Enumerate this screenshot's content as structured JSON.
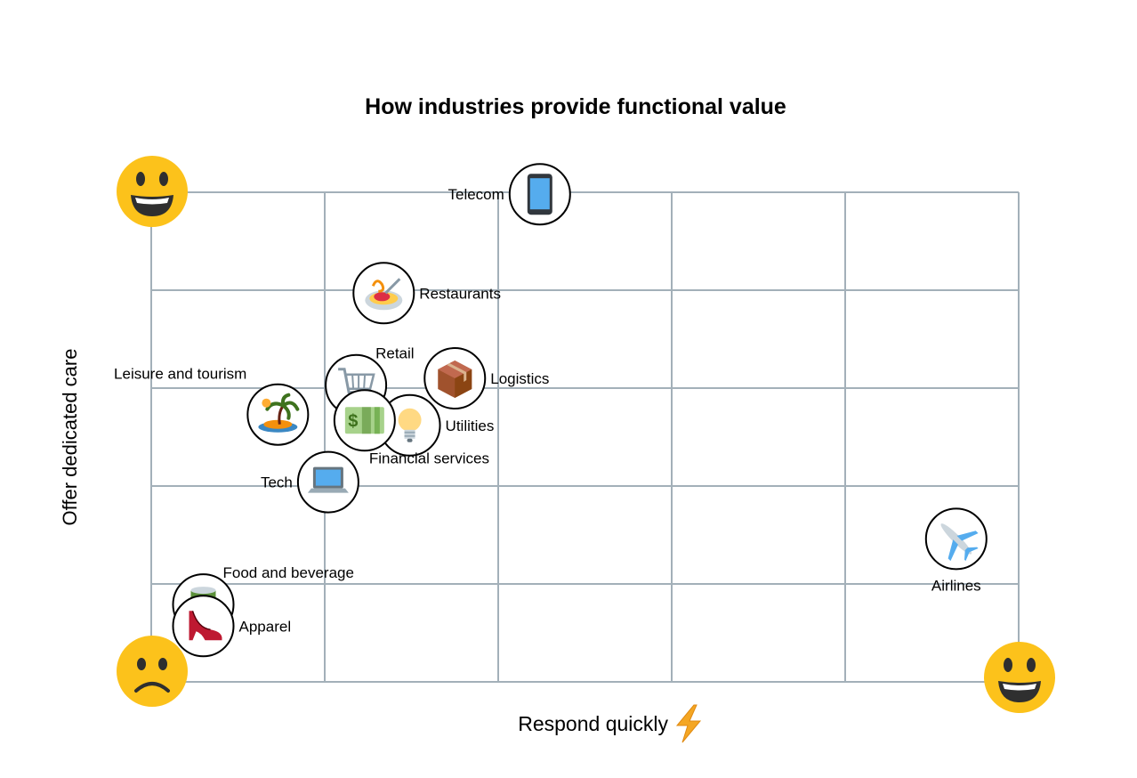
{
  "chart_data": {
    "type": "scatter",
    "title": "How industries provide functional value",
    "xlabel": "Respond quickly",
    "xlabel_icon": "lightning-bolt-icon",
    "ylabel": "Offer dedicated care",
    "xlim": [
      0,
      5
    ],
    "ylim": [
      0,
      5
    ],
    "grid": true,
    "grid_color": "#a3b0b9",
    "corner_icons": [
      {
        "name": "top-left-happy-face-icon",
        "mood": "happy",
        "corner": "top-left"
      },
      {
        "name": "bottom-left-sad-face-icon",
        "mood": "sad",
        "corner": "bottom-left"
      },
      {
        "name": "bottom-right-happy-face-icon",
        "mood": "happy",
        "corner": "bottom-right"
      }
    ],
    "points": [
      {
        "label": "Telecom",
        "x": 2.24,
        "y": 4.98,
        "icon": "mobile-phone-icon",
        "label_pos": "left"
      },
      {
        "label": "Restaurants",
        "x": 1.34,
        "y": 3.97,
        "icon": "spaghetti-icon",
        "label_pos": "right"
      },
      {
        "label": "Retail",
        "x": 1.18,
        "y": 3.03,
        "icon": "shopping-cart-icon",
        "label_pos": "top-right"
      },
      {
        "label": "Logistics",
        "x": 1.75,
        "y": 3.1,
        "icon": "package-icon",
        "label_pos": "right"
      },
      {
        "label": "Leisure and tourism",
        "x": 0.73,
        "y": 2.73,
        "icon": "desert-island-icon",
        "label_pos": "top-left"
      },
      {
        "label": "Utilities",
        "x": 1.49,
        "y": 2.62,
        "icon": "light-bulb-icon",
        "label_pos": "right"
      },
      {
        "label": "Financial services",
        "x": 1.23,
        "y": 2.67,
        "icon": "dollar-banknote-icon",
        "label_pos": "bottom-right"
      },
      {
        "label": "Tech",
        "x": 1.02,
        "y": 2.04,
        "icon": "laptop-icon",
        "label_pos": "left"
      },
      {
        "label": "Airlines",
        "x": 4.64,
        "y": 1.46,
        "icon": "airplane-icon",
        "label_pos": "bottom"
      },
      {
        "label": "Food and beverage",
        "x": 0.3,
        "y": 0.79,
        "icon": "canned-food-icon",
        "label_pos": "top-right"
      },
      {
        "label": "Apparel",
        "x": 0.3,
        "y": 0.57,
        "icon": "high-heeled-shoe-icon",
        "label_pos": "right"
      }
    ]
  }
}
